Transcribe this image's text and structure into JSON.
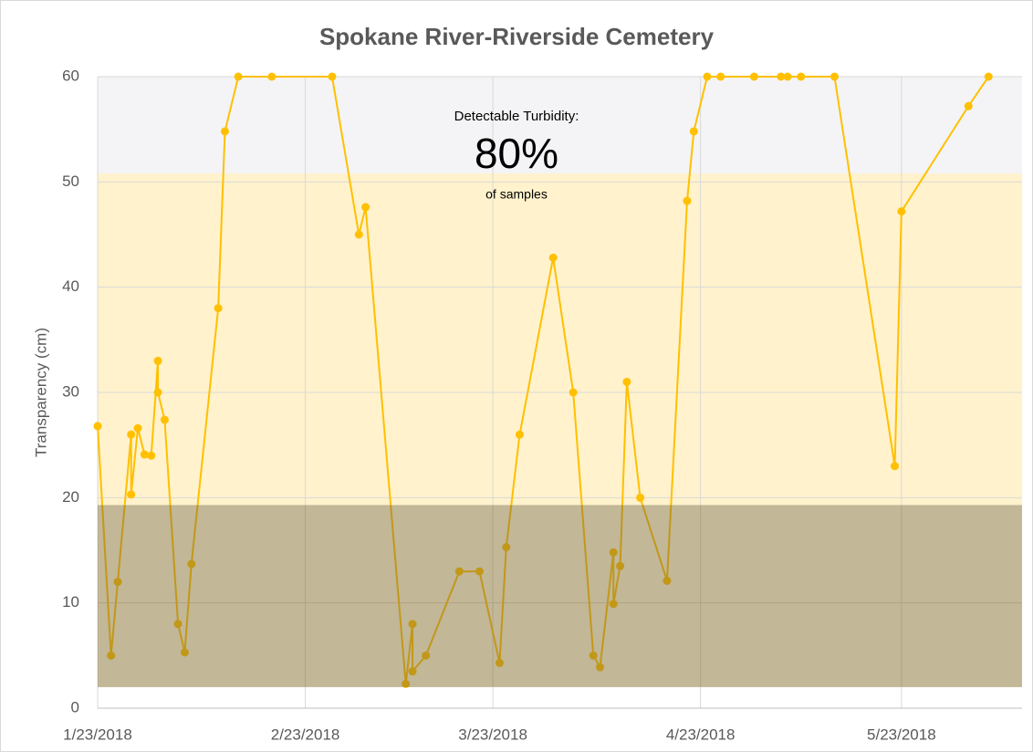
{
  "chart_data": {
    "type": "line",
    "title": "Spokane River-Riverside Cemetery",
    "y_label": "Transparency (cm)",
    "annotation": {
      "heading": "Detectable Turbidity:",
      "value": "80%",
      "caption": "of samples"
    },
    "x": [
      "1/23/2018",
      "1/25/2018",
      "1/26/2018",
      "1/28/2018",
      "1/28/2018",
      "1/29/2018",
      "1/30/2018",
      "1/31/2018",
      "2/1/2018",
      "2/1/2018",
      "2/2/2018",
      "2/4/2018",
      "2/5/2018",
      "2/6/2018",
      "2/10/2018",
      "2/11/2018",
      "2/13/2018",
      "2/18/2018",
      "2/27/2018",
      "3/3/2018",
      "3/4/2018",
      "3/10/2018",
      "3/11/2018",
      "3/11/2018",
      "3/13/2018",
      "3/18/2018",
      "3/21/2018",
      "3/24/2018",
      "3/25/2018",
      "3/27/2018",
      "4/1/2018",
      "4/4/2018",
      "4/7/2018",
      "4/8/2018",
      "4/10/2018",
      "4/10/2018",
      "4/11/2018",
      "4/12/2018",
      "4/14/2018",
      "4/18/2018",
      "4/21/2018",
      "4/22/2018",
      "4/24/2018",
      "4/26/2018",
      "5/1/2018",
      "5/5/2018",
      "5/6/2018",
      "5/8/2018",
      "5/13/2018",
      "5/22/2018",
      "5/23/2018",
      "6/2/2018",
      "6/5/2018"
    ],
    "values": [
      26.8,
      5,
      12,
      26,
      20.3,
      26.6,
      24.1,
      24,
      33,
      30,
      27.4,
      8,
      5.3,
      13.7,
      38,
      54.8,
      60,
      60,
      60,
      45,
      47.6,
      2.3,
      8,
      3.5,
      5,
      13,
      13,
      4.3,
      15.3,
      26,
      42.8,
      30,
      5,
      3.9,
      14.8,
      9.9,
      13.5,
      31,
      20,
      12.1,
      48.2,
      54.8,
      60,
      60,
      60,
      60,
      60,
      60,
      60,
      23,
      47.2,
      57.2,
      60
    ],
    "color": "#ffc000",
    "bands": [
      {
        "from": 50.8,
        "to": 60,
        "color": "#f4f4f6",
        "opacity": 1,
        "layer": "under"
      },
      {
        "from": 19.3,
        "to": 50.8,
        "color": "#fff2cc",
        "opacity": 1,
        "layer": "under"
      },
      {
        "from": 2,
        "to": 19.3,
        "color": "#85702f",
        "opacity": 0.5,
        "layer": "over"
      }
    ],
    "xlim": [
      "1/23/2018",
      "6/10/2018"
    ],
    "xticks": [
      "1/23/2018",
      "2/23/2018",
      "3/23/2018",
      "4/23/2018",
      "5/23/2018"
    ],
    "ylim": [
      0,
      60
    ],
    "yticks": [
      0,
      10,
      20,
      30,
      40,
      50,
      60
    ],
    "grid": true
  }
}
